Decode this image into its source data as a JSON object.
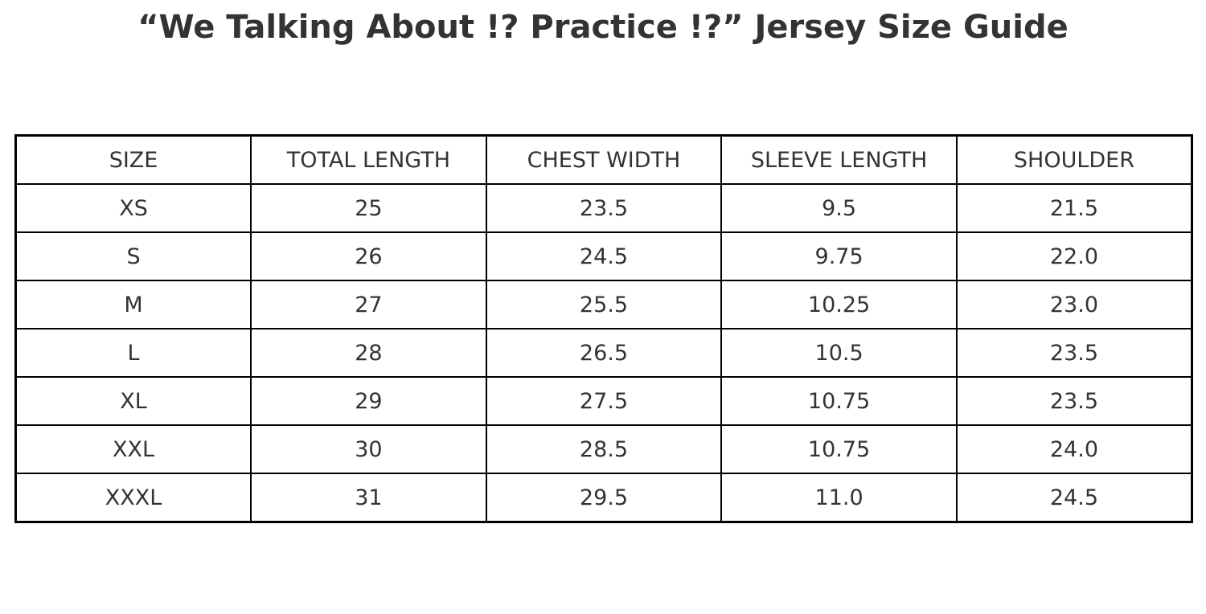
{
  "title": "“We Talking About !? Practice !?” Jersey Size Guide",
  "colors": {
    "background": "#ffffff",
    "text": "#333333",
    "border": "#000000"
  },
  "table": {
    "headers": [
      "SIZE",
      "TOTAL LENGTH",
      "CHEST WIDTH",
      "SLEEVE LENGTH",
      "SHOULDER"
    ],
    "rows": [
      {
        "size": "XS",
        "total_length": "25",
        "chest_width": "23.5",
        "sleeve_length": "9.5",
        "shoulder": "21.5"
      },
      {
        "size": "S",
        "total_length": "26",
        "chest_width": "24.5",
        "sleeve_length": "9.75",
        "shoulder": "22.0"
      },
      {
        "size": "M",
        "total_length": "27",
        "chest_width": "25.5",
        "sleeve_length": "10.25",
        "shoulder": "23.0"
      },
      {
        "size": "L",
        "total_length": "28",
        "chest_width": "26.5",
        "sleeve_length": "10.5",
        "shoulder": "23.5"
      },
      {
        "size": "XL",
        "total_length": "29",
        "chest_width": "27.5",
        "sleeve_length": "10.75",
        "shoulder": "23.5"
      },
      {
        "size": "XXL",
        "total_length": "30",
        "chest_width": "28.5",
        "sleeve_length": "10.75",
        "shoulder": "24.0"
      },
      {
        "size": "XXXL",
        "total_length": "31",
        "chest_width": "29.5",
        "sleeve_length": "11.0",
        "shoulder": "24.5"
      }
    ]
  },
  "chart_data": {
    "type": "table",
    "title": "“We Talking About !? Practice !?” Jersey Size Guide",
    "columns": [
      "SIZE",
      "TOTAL LENGTH",
      "CHEST WIDTH",
      "SLEEVE LENGTH",
      "SHOULDER"
    ],
    "rows": [
      [
        "XS",
        25,
        23.5,
        9.5,
        21.5
      ],
      [
        "S",
        26,
        24.5,
        9.75,
        22.0
      ],
      [
        "M",
        27,
        25.5,
        10.25,
        23.0
      ],
      [
        "L",
        28,
        26.5,
        10.5,
        23.5
      ],
      [
        "XL",
        29,
        27.5,
        10.75,
        23.5
      ],
      [
        "XXL",
        30,
        28.5,
        10.75,
        24.0
      ],
      [
        "XXXL",
        31,
        29.5,
        11.0,
        24.5
      ]
    ]
  }
}
